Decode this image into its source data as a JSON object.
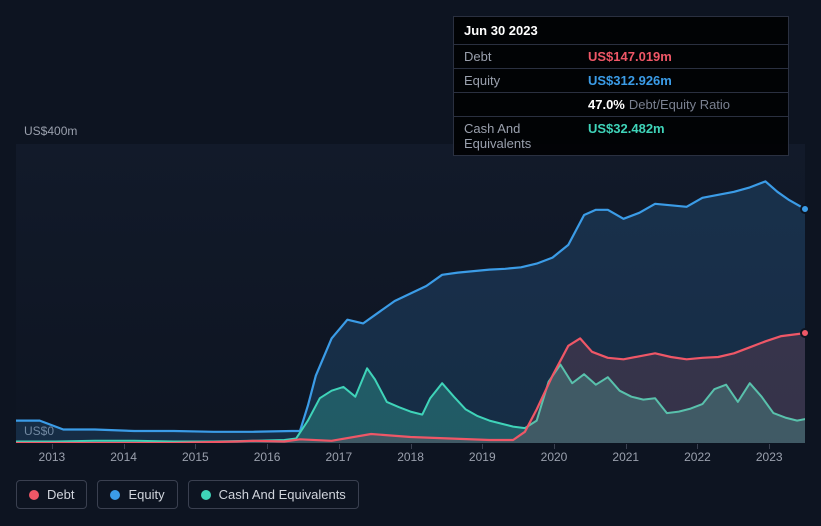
{
  "tooltip": {
    "date": "Jun 30 2023",
    "rows": [
      {
        "label": "Debt",
        "value": "US$147.019m",
        "color": "#ef5767"
      },
      {
        "label": "Equity",
        "value": "US$312.926m",
        "color": "#3b9ce7"
      },
      {
        "label": "",
        "value": "47.0%",
        "secondary": "Debt/Equity Ratio",
        "color": "#ffffff"
      },
      {
        "label": "Cash And Equivalents",
        "value": "US$32.482m",
        "color": "#3fd4b9"
      }
    ]
  },
  "chart": {
    "type": "area",
    "background_color": "#0d1421",
    "plot_bg_top": "rgba(25,35,55,0.4)",
    "ylim": [
      0,
      400
    ],
    "y_ticks": [
      {
        "value": 400,
        "label": "US$400m"
      },
      {
        "value": 0,
        "label": "US$0"
      }
    ],
    "x_labels": [
      "2013",
      "2014",
      "2015",
      "2016",
      "2017",
      "2018",
      "2019",
      "2020",
      "2021",
      "2022",
      "2023"
    ],
    "grid_color": "#2a3040",
    "axis_label_color": "#9aa0ad",
    "axis_label_fontsize": 12,
    "series": [
      {
        "name": "Equity",
        "color": "#3b9ce7",
        "fill_opacity": 0.18,
        "line_width": 2.2,
        "end_marker": true,
        "points": [
          [
            0.0,
            30
          ],
          [
            0.03,
            30
          ],
          [
            0.06,
            18
          ],
          [
            0.1,
            18
          ],
          [
            0.15,
            16
          ],
          [
            0.2,
            16
          ],
          [
            0.25,
            15
          ],
          [
            0.3,
            15
          ],
          [
            0.35,
            16
          ],
          [
            0.36,
            16
          ],
          [
            0.37,
            50
          ],
          [
            0.38,
            90
          ],
          [
            0.4,
            140
          ],
          [
            0.42,
            165
          ],
          [
            0.44,
            160
          ],
          [
            0.46,
            175
          ],
          [
            0.48,
            190
          ],
          [
            0.5,
            200
          ],
          [
            0.52,
            210
          ],
          [
            0.54,
            225
          ],
          [
            0.56,
            228
          ],
          [
            0.58,
            230
          ],
          [
            0.6,
            232
          ],
          [
            0.62,
            233
          ],
          [
            0.64,
            235
          ],
          [
            0.66,
            240
          ],
          [
            0.68,
            248
          ],
          [
            0.7,
            265
          ],
          [
            0.72,
            305
          ],
          [
            0.735,
            312
          ],
          [
            0.75,
            312
          ],
          [
            0.77,
            300
          ],
          [
            0.79,
            308
          ],
          [
            0.81,
            320
          ],
          [
            0.83,
            318
          ],
          [
            0.85,
            316
          ],
          [
            0.87,
            328
          ],
          [
            0.89,
            332
          ],
          [
            0.91,
            336
          ],
          [
            0.93,
            342
          ],
          [
            0.95,
            350
          ],
          [
            0.965,
            336
          ],
          [
            0.98,
            325
          ],
          [
            1.0,
            313
          ]
        ]
      },
      {
        "name": "Debt",
        "color": "#ef5767",
        "fill_opacity": 0.15,
        "line_width": 2.2,
        "end_marker": true,
        "points": [
          [
            0.0,
            0
          ],
          [
            0.1,
            0
          ],
          [
            0.2,
            0
          ],
          [
            0.28,
            2
          ],
          [
            0.3,
            3
          ],
          [
            0.34,
            2
          ],
          [
            0.36,
            5
          ],
          [
            0.4,
            3
          ],
          [
            0.45,
            12
          ],
          [
            0.5,
            8
          ],
          [
            0.55,
            6
          ],
          [
            0.6,
            4
          ],
          [
            0.63,
            4
          ],
          [
            0.645,
            15
          ],
          [
            0.66,
            45
          ],
          [
            0.68,
            90
          ],
          [
            0.7,
            130
          ],
          [
            0.715,
            140
          ],
          [
            0.73,
            122
          ],
          [
            0.75,
            114
          ],
          [
            0.77,
            112
          ],
          [
            0.79,
            116
          ],
          [
            0.81,
            120
          ],
          [
            0.83,
            115
          ],
          [
            0.85,
            112
          ],
          [
            0.87,
            114
          ],
          [
            0.89,
            115
          ],
          [
            0.91,
            120
          ],
          [
            0.93,
            128
          ],
          [
            0.95,
            136
          ],
          [
            0.97,
            143
          ],
          [
            1.0,
            147
          ]
        ]
      },
      {
        "name": "Cash And Equivalents",
        "color": "#3fd4b9",
        "fill_opacity": 0.28,
        "line_width": 2,
        "end_marker": false,
        "points": [
          [
            0.0,
            2
          ],
          [
            0.05,
            2
          ],
          [
            0.1,
            3
          ],
          [
            0.15,
            3
          ],
          [
            0.2,
            2
          ],
          [
            0.25,
            2
          ],
          [
            0.3,
            3
          ],
          [
            0.34,
            4
          ],
          [
            0.355,
            6
          ],
          [
            0.37,
            30
          ],
          [
            0.385,
            60
          ],
          [
            0.4,
            70
          ],
          [
            0.415,
            75
          ],
          [
            0.43,
            62
          ],
          [
            0.445,
            100
          ],
          [
            0.455,
            85
          ],
          [
            0.47,
            55
          ],
          [
            0.485,
            48
          ],
          [
            0.5,
            42
          ],
          [
            0.515,
            38
          ],
          [
            0.525,
            60
          ],
          [
            0.54,
            80
          ],
          [
            0.555,
            62
          ],
          [
            0.57,
            45
          ],
          [
            0.585,
            36
          ],
          [
            0.6,
            30
          ],
          [
            0.615,
            26
          ],
          [
            0.63,
            22
          ],
          [
            0.645,
            20
          ],
          [
            0.66,
            30
          ],
          [
            0.675,
            82
          ],
          [
            0.69,
            105
          ],
          [
            0.705,
            80
          ],
          [
            0.72,
            92
          ],
          [
            0.735,
            78
          ],
          [
            0.75,
            88
          ],
          [
            0.765,
            70
          ],
          [
            0.78,
            62
          ],
          [
            0.795,
            58
          ],
          [
            0.81,
            60
          ],
          [
            0.825,
            40
          ],
          [
            0.84,
            42
          ],
          [
            0.855,
            46
          ],
          [
            0.87,
            52
          ],
          [
            0.885,
            72
          ],
          [
            0.9,
            78
          ],
          [
            0.915,
            55
          ],
          [
            0.93,
            80
          ],
          [
            0.945,
            62
          ],
          [
            0.96,
            40
          ],
          [
            0.975,
            34
          ],
          [
            0.99,
            30
          ],
          [
            1.0,
            32
          ]
        ]
      }
    ]
  },
  "legend": [
    {
      "label": "Debt",
      "color": "#ef5767"
    },
    {
      "label": "Equity",
      "color": "#3b9ce7"
    },
    {
      "label": "Cash And Equivalents",
      "color": "#3fd4b9"
    }
  ]
}
